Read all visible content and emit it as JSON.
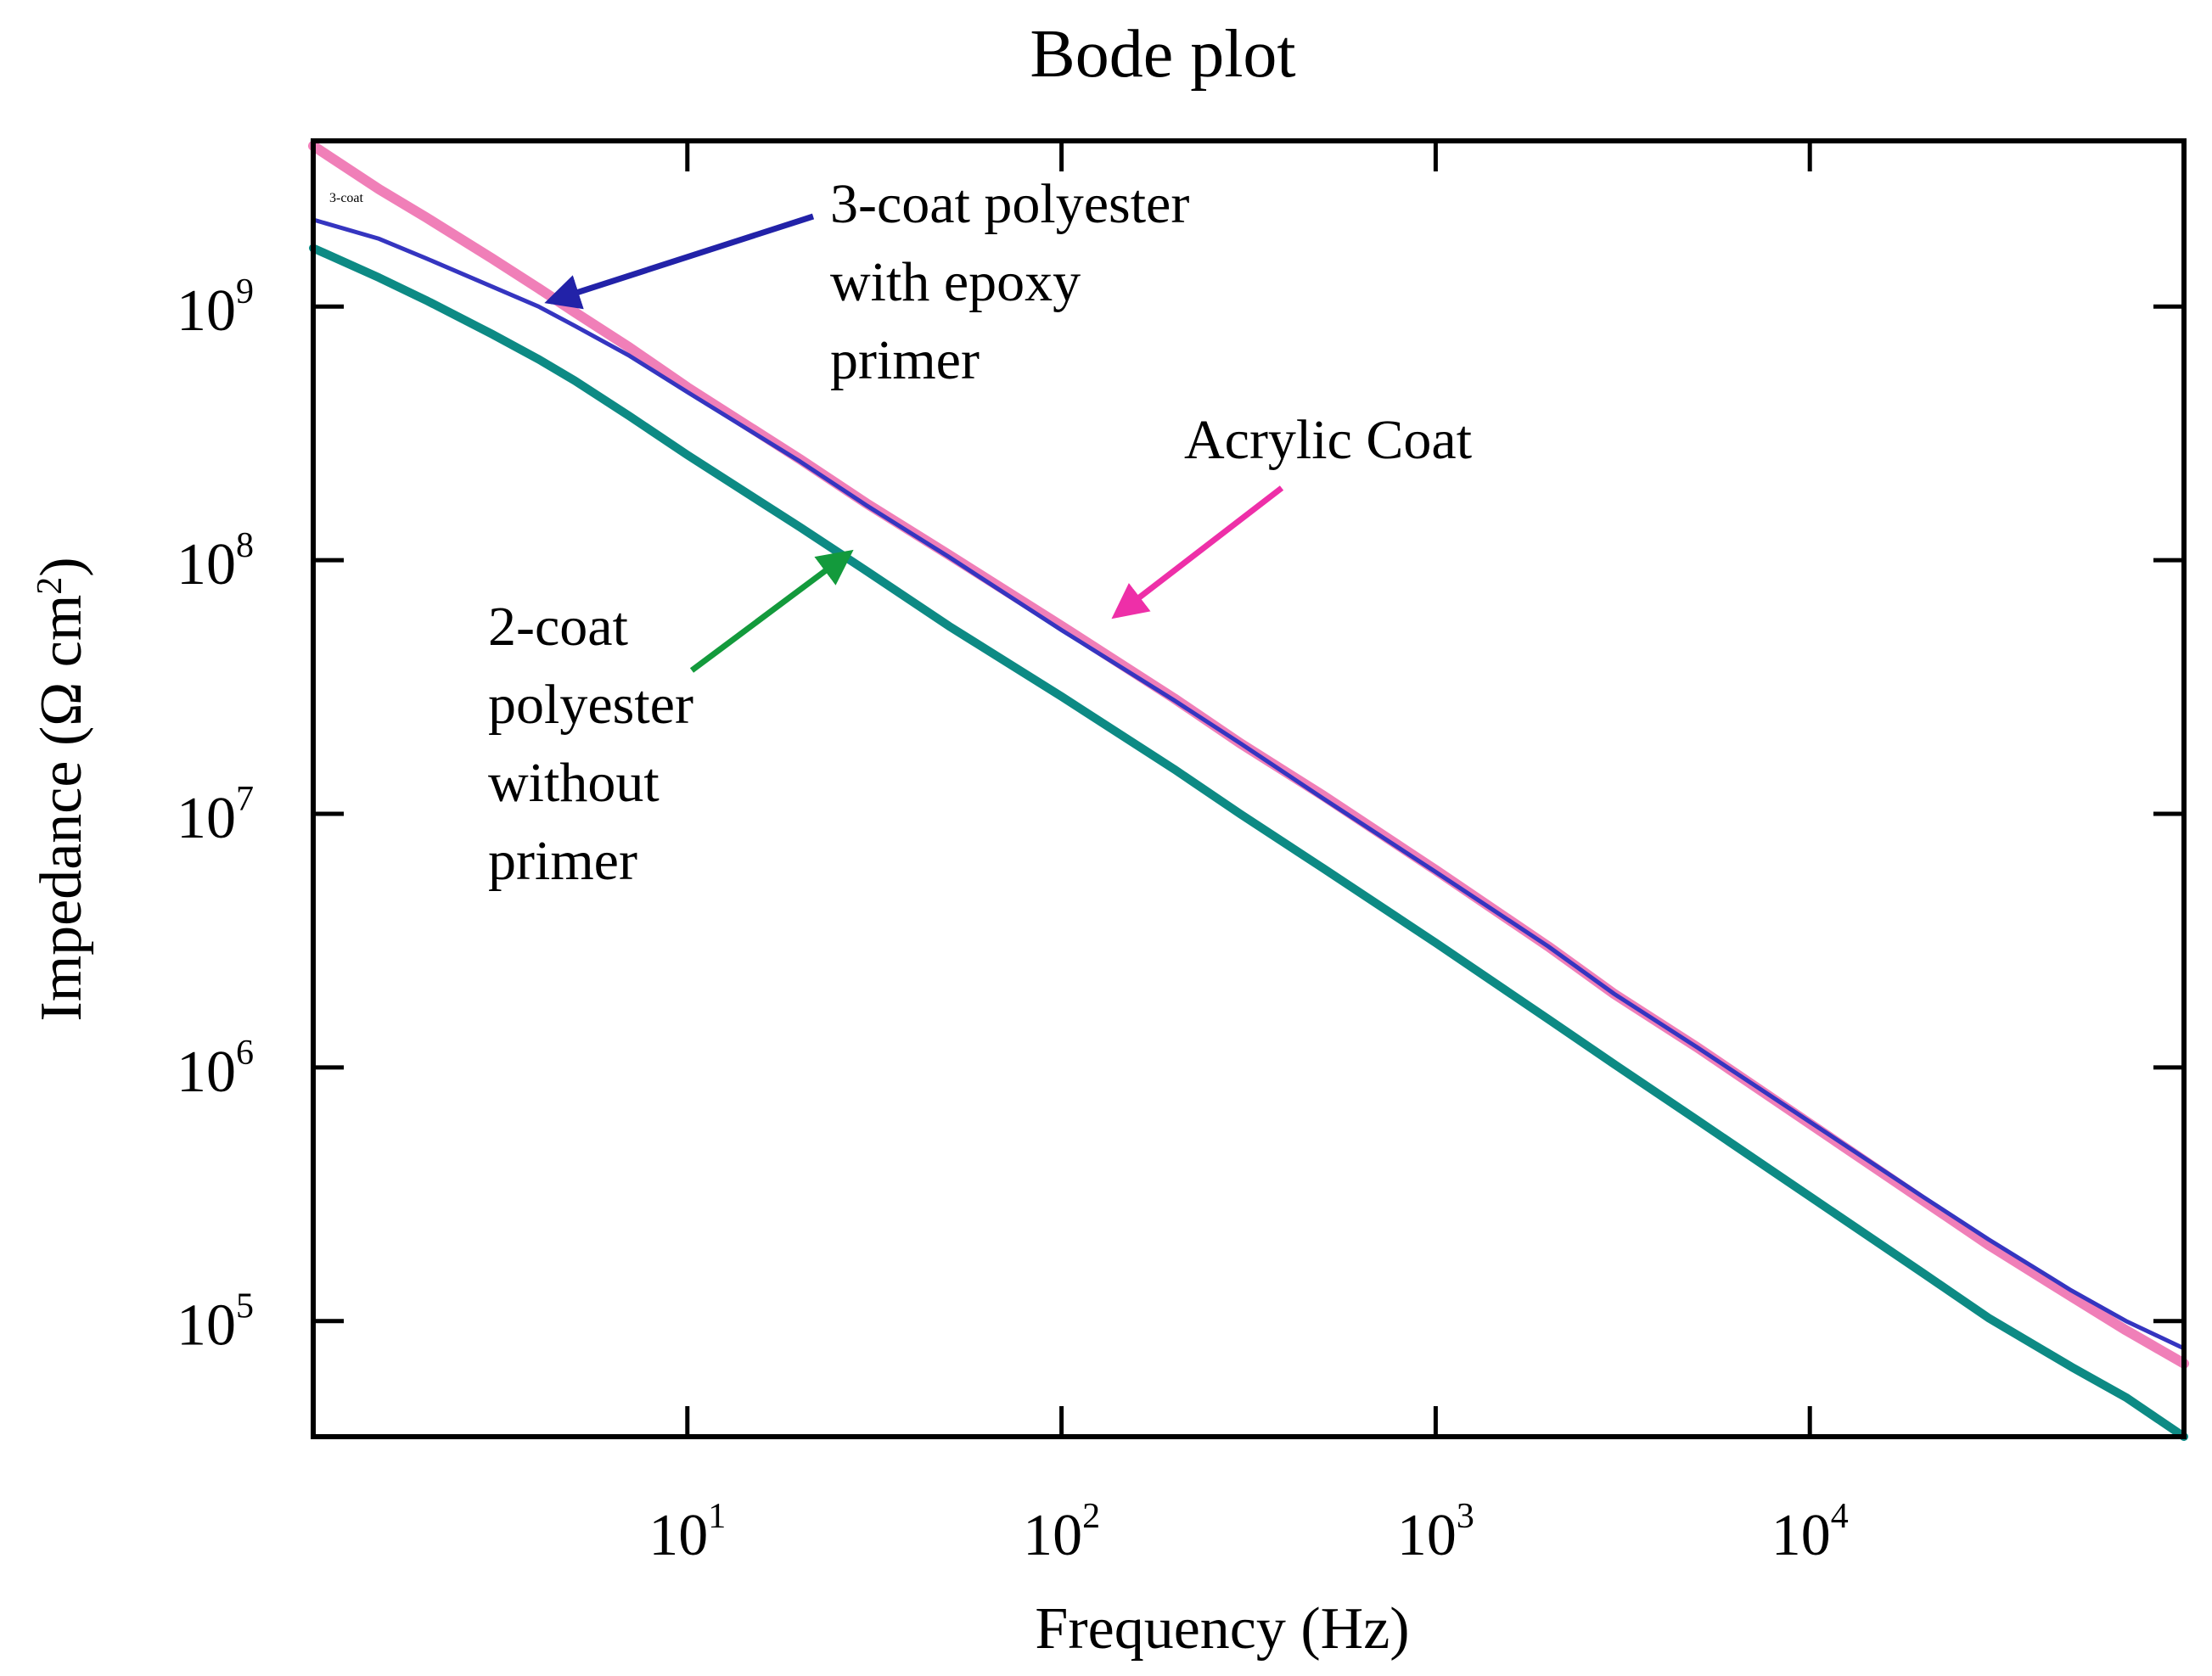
{
  "chart_data": {
    "type": "line",
    "title": "Bode plot",
    "xlabel": "Frequency (Hz)",
    "ylabel": {
      "text": "Impedance (Ω cm",
      "superscript": "2",
      "suffix": ")"
    },
    "xscale": "log",
    "yscale": "log",
    "xlim": [
      1,
      100000
    ],
    "ylim": [
      35000,
      4500000000
    ],
    "x_ticks": [
      {
        "value": 10,
        "base": "10",
        "exp": "1"
      },
      {
        "value": 100,
        "base": "10",
        "exp": "2"
      },
      {
        "value": 1000,
        "base": "10",
        "exp": "3"
      },
      {
        "value": 10000,
        "base": "10",
        "exp": "4"
      }
    ],
    "y_ticks": [
      {
        "value": 100000,
        "base": "10",
        "exp": "5"
      },
      {
        "value": 1000000,
        "base": "10",
        "exp": "6"
      },
      {
        "value": 10000000,
        "base": "10",
        "exp": "7"
      },
      {
        "value": 100000000,
        "base": "10",
        "exp": "8"
      },
      {
        "value": 1000000000,
        "base": "10",
        "exp": "9"
      }
    ],
    "grid": false,
    "corner_label": "3-coat",
    "series": [
      {
        "name": "Acrylic Coat",
        "color": "#f07fb8",
        "x": [
          1,
          1.5,
          2,
          3,
          4,
          5,
          7,
          10,
          20,
          30,
          50,
          100,
          200,
          300,
          500,
          1000,
          2000,
          3000,
          5000,
          10000,
          20000,
          30000,
          50000,
          70000,
          100000
        ],
        "y": [
          4300000000,
          2900000000,
          2250000000,
          1550000000,
          1180000000,
          950000000,
          690000000,
          480000000,
          250000000,
          168000000,
          105000000,
          55000000,
          28500000,
          19000000,
          11800000,
          6000000,
          3000000,
          1950000,
          1200000,
          600000,
          300000,
          200000,
          125000,
          92000,
          68000
        ]
      },
      {
        "name": "3-coat polyester with epoxy primer",
        "color": "#3535c0",
        "x": [
          1,
          1.5,
          2,
          3,
          4,
          5,
          7,
          10,
          20,
          30,
          50,
          100,
          200,
          300,
          500,
          1000,
          2000,
          3000,
          5000,
          10000,
          20000,
          30000,
          50000,
          70000,
          100000
        ],
        "y": [
          2200000000,
          1850000000,
          1550000000,
          1200000000,
          1000000000,
          840000000,
          640000000,
          460000000,
          245000000,
          165000000,
          103000000,
          53000000,
          28000000,
          19000000,
          11500000,
          5900000,
          3000000,
          1950000,
          1200000,
          610000,
          310000,
          210000,
          132000,
          100000,
          78000
        ]
      },
      {
        "name": "2-coat polyester without primer",
        "color": "#0d8a84",
        "x": [
          1,
          1.5,
          2,
          3,
          4,
          5,
          7,
          10,
          20,
          30,
          50,
          100,
          200,
          300,
          500,
          1000,
          2000,
          3000,
          5000,
          10000,
          20000,
          30000,
          50000,
          70000,
          100000
        ],
        "y": [
          1700000000,
          1300000000,
          1060000000,
          780000000,
          620000000,
          510000000,
          370000000,
          260000000,
          135000000,
          91000000,
          55000000,
          29000000,
          15000000,
          10000000,
          6100000,
          3100000,
          1550000,
          1030000,
          620000,
          310000,
          155000,
          103000,
          66000,
          50000,
          35000
        ]
      }
    ],
    "annotations": [
      {
        "key": "acrylic",
        "lines": [
          "Acrylic Coat"
        ],
        "color": "#ee2fa8"
      },
      {
        "key": "three_coat",
        "lines": [
          "3-coat polyester",
          "with epoxy",
          "primer"
        ],
        "color": "#2222a8"
      },
      {
        "key": "two_coat",
        "lines": [
          "2-coat",
          "polyester",
          "without",
          "primer"
        ],
        "color": "#139a3c"
      }
    ]
  }
}
